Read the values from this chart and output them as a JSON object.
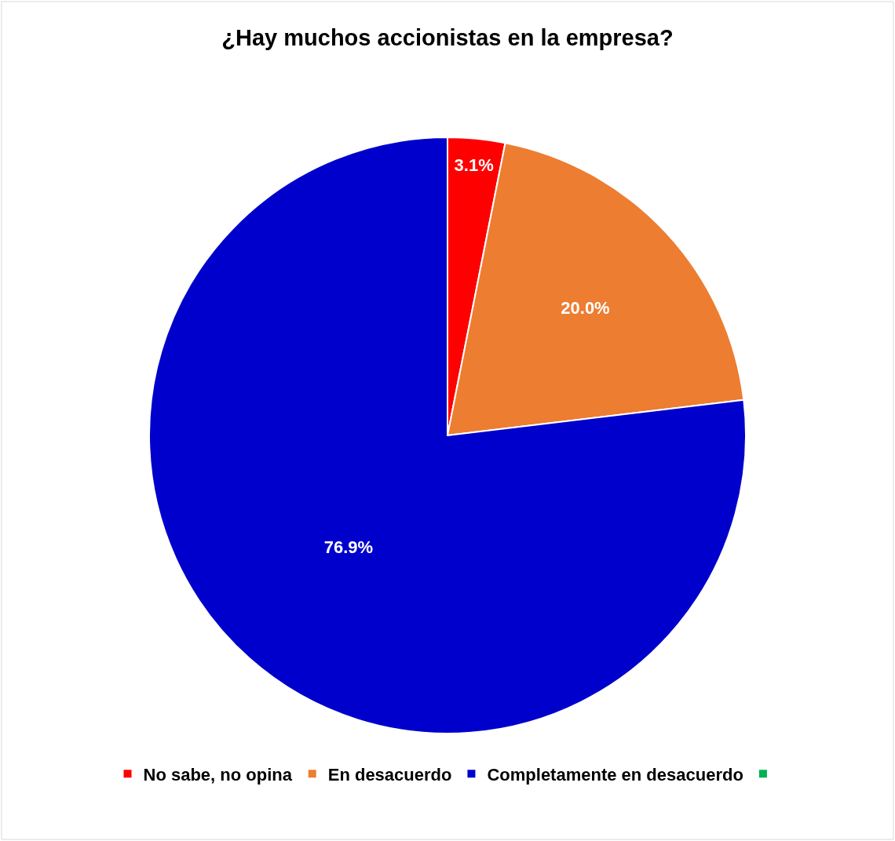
{
  "chart_data": {
    "type": "pie",
    "title": "¿Hay muchos accionistas en la empresa?",
    "categories": [
      "No sabe, no opina",
      "En desacuerdo",
      "Completamente en desacuerdo",
      null
    ],
    "values": [
      3.1,
      20.0,
      76.9,
      0
    ],
    "colors": [
      "#ff0000",
      "#ed7d31",
      "#0000cc",
      "#00b050"
    ],
    "value_labels": [
      "3.1%",
      "20.0%",
      "76.9%",
      null
    ],
    "legend": "bottom"
  }
}
